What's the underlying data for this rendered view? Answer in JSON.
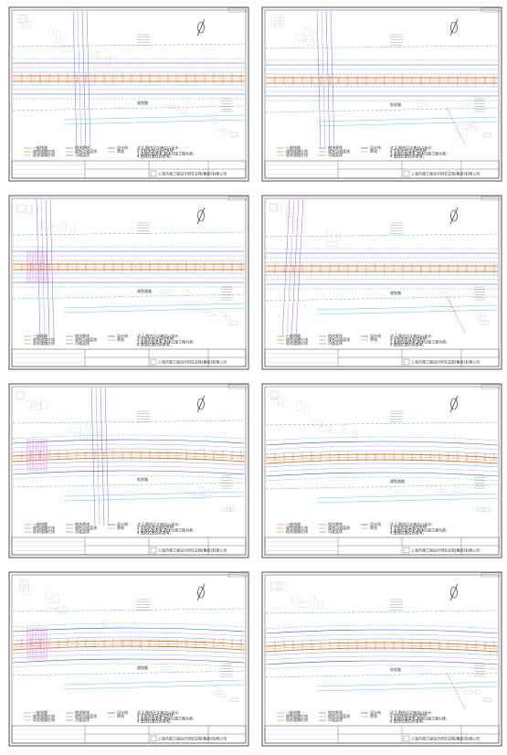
{
  "title": "",
  "company": "上海市政工程设计研究总院(集团)有限公司",
  "legend_items": [
    "一般线路",
    "规划道路红线",
    "现状道路红线",
    "地块界线",
    "规划河道蓝线",
    "河道蓝线",
    "设计线",
    "界线"
  ],
  "notes": [
    "注:1.图中尺寸单位以米计;",
    "2.坐标系统及高程系统;",
    "3.本图仅供参考,具体以施工图为准;",
    "4.管线位置仅供参考。"
  ],
  "road_labels": [
    "规划路",
    "现状路",
    "规划道路"
  ],
  "colors": {
    "red_line": "#d9534f",
    "green_line": "#3fa34d",
    "blue_line": "#2d5fd4",
    "orange_line": "#e07b20",
    "purple_line": "#8b3fd1",
    "magenta": "#d63ad1",
    "cyan": "#4cb7c9",
    "grey": "#888888"
  },
  "sheets": [
    {
      "id": "sheet-1",
      "road_label": "规划路"
    },
    {
      "id": "sheet-2",
      "road_label": "现状路"
    },
    {
      "id": "sheet-3",
      "road_label": "规划道路"
    },
    {
      "id": "sheet-4",
      "road_label": "规划路"
    },
    {
      "id": "sheet-5",
      "road_label": "现状路"
    },
    {
      "id": "sheet-6",
      "road_label": "规划道路"
    },
    {
      "id": "sheet-7",
      "road_label": "规划路"
    },
    {
      "id": "sheet-8",
      "road_label": "现状路"
    }
  ]
}
